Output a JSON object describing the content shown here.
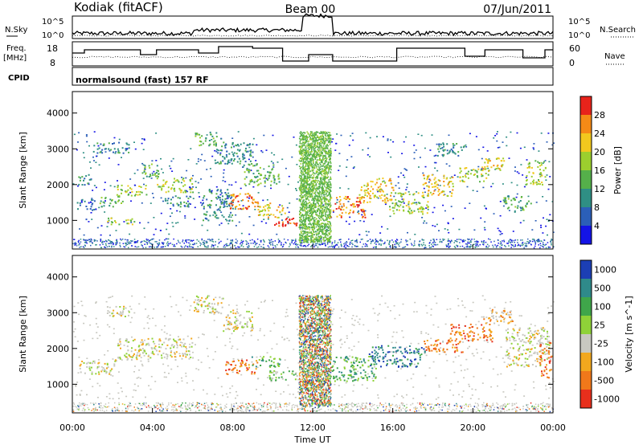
{
  "header": {
    "station": "Kodiak (fitACF)",
    "beam": "Beam 00",
    "date": "07/Jun/2011"
  },
  "strip_labels": {
    "nsky": "N.Sky",
    "nsearch": "N.Search",
    "freq": "Freq.",
    "freq_unit": "[MHz]",
    "nave": "Nave",
    "cpid": "CPID",
    "cpid_text": "normalsound (fast) 157 RF",
    "exp_top": "10^5",
    "exp_bottom": "10^0",
    "freq_ticks": [
      "18",
      "8"
    ],
    "nave_ticks": [
      "60",
      "0"
    ]
  },
  "chart_data": [
    {
      "type": "heatmap",
      "name": "power",
      "ylabel": "Slant Range [km]",
      "yticks": [
        1000,
        2000,
        3000,
        4000
      ],
      "ylim": [
        200,
        4600
      ],
      "xlim": [
        0,
        24
      ],
      "colorbar_label": "Power [dB]",
      "colorbar_ticks": [
        "4",
        "8",
        "12",
        "16",
        "20",
        "24",
        "28"
      ],
      "colorbar_colors": [
        "#1414e6",
        "#2b5fb8",
        "#2f8f84",
        "#55b04a",
        "#9ccf2e",
        "#f2c81e",
        "#f58a16",
        "#e8231b"
      ],
      "regions": [
        {
          "t0": 0.2,
          "t1": 0.9,
          "r0": 2000,
          "r1": 2300,
          "level": 2
        },
        {
          "t0": 0.2,
          "t1": 1.2,
          "r0": 1300,
          "r1": 1600,
          "level": 1
        },
        {
          "t0": 1.0,
          "t1": 2.8,
          "r0": 2900,
          "r1": 3200,
          "level": 2
        },
        {
          "t0": 1.3,
          "t1": 2.5,
          "r0": 1400,
          "r1": 1700,
          "level": 3
        },
        {
          "t0": 1.7,
          "t1": 3.1,
          "r0": 900,
          "r1": 1100,
          "level": 4
        },
        {
          "t0": 2.2,
          "t1": 3.8,
          "r0": 1700,
          "r1": 2000,
          "level": 4
        },
        {
          "t0": 3.4,
          "t1": 4.3,
          "r0": 2200,
          "r1": 2600,
          "level": 3
        },
        {
          "t0": 4.2,
          "t1": 6.0,
          "r0": 1800,
          "r1": 2200,
          "level": 4
        },
        {
          "t0": 4.5,
          "t1": 5.8,
          "r0": 1400,
          "r1": 1700,
          "level": 2
        },
        {
          "t0": 6.1,
          "t1": 7.2,
          "r0": 3100,
          "r1": 3500,
          "level": 3
        },
        {
          "t0": 6.5,
          "t1": 8.0,
          "r0": 1000,
          "r1": 1900,
          "level": 2
        },
        {
          "t0": 7.0,
          "t1": 9.0,
          "r0": 2600,
          "r1": 3200,
          "level": 2
        },
        {
          "t0": 7.8,
          "t1": 9.3,
          "r0": 1300,
          "r1": 1800,
          "level": 6
        },
        {
          "t0": 8.5,
          "t1": 10.3,
          "r0": 2000,
          "r1": 2600,
          "level": 3
        },
        {
          "t0": 9.2,
          "t1": 10.6,
          "r0": 1100,
          "r1": 1500,
          "level": 5
        },
        {
          "t0": 10.0,
          "t1": 11.2,
          "r0": 850,
          "r1": 1150,
          "level": 7
        },
        {
          "t0": 12.8,
          "t1": 14.6,
          "r0": 1100,
          "r1": 1700,
          "level": 6
        },
        {
          "t0": 14.3,
          "t1": 16.0,
          "r0": 1500,
          "r1": 2200,
          "level": 5
        },
        {
          "t0": 15.8,
          "t1": 17.8,
          "r0": 1200,
          "r1": 1800,
          "level": 4
        },
        {
          "t0": 17.4,
          "t1": 19.0,
          "r0": 1700,
          "r1": 2300,
          "level": 5
        },
        {
          "t0": 18.2,
          "t1": 19.6,
          "r0": 2800,
          "r1": 3200,
          "level": 2
        },
        {
          "t0": 19.3,
          "t1": 20.8,
          "r0": 2100,
          "r1": 2500,
          "level": 4
        },
        {
          "t0": 20.4,
          "t1": 21.6,
          "r0": 2400,
          "r1": 2800,
          "level": 5
        },
        {
          "t0": 21.5,
          "t1": 22.9,
          "r0": 1300,
          "r1": 1700,
          "level": 3
        },
        {
          "t0": 22.6,
          "t1": 23.6,
          "r0": 2000,
          "r1": 2700,
          "level": 4
        }
      ]
    },
    {
      "type": "heatmap",
      "name": "velocity",
      "ylabel": "Slant Range [km]",
      "yticks": [
        1000,
        2000,
        3000,
        4000
      ],
      "ylim": [
        200,
        4600
      ],
      "xlim": [
        0,
        24
      ],
      "xticks": [
        "00:00",
        "04:00",
        "08:00",
        "12:00",
        "16:00",
        "20:00",
        "00:00"
      ],
      "xlabel": "Time UT",
      "colorbar_label": "Velocity [m s^-1]",
      "colorbar_ticks": [
        "1000",
        "500",
        "100",
        "25",
        "-25",
        "-100",
        "-500",
        "-1000"
      ],
      "colorbar_colors": [
        "#1c3fb4",
        "#2f8a8a",
        "#3fa64a",
        "#8fd238",
        "#c8c8c0",
        "#f2a81e",
        "#f0781a",
        "#e82f1c"
      ],
      "regions": [
        {
          "t0": 0.3,
          "t1": 2.2,
          "r0": 1300,
          "r1": 1700,
          "level": 4
        },
        {
          "t0": 1.5,
          "t1": 2.8,
          "r0": 2900,
          "r1": 3200,
          "level": 4
        },
        {
          "t0": 2.2,
          "t1": 6.0,
          "r0": 1700,
          "r1": 2300,
          "level": 4
        },
        {
          "t0": 6.0,
          "t1": 7.5,
          "r0": 3000,
          "r1": 3500,
          "level": 4
        },
        {
          "t0": 7.5,
          "t1": 9.0,
          "r0": 2500,
          "r1": 3100,
          "level": 4
        },
        {
          "t0": 7.6,
          "t1": 9.3,
          "r0": 1300,
          "r1": 1700,
          "level": 6
        },
        {
          "t0": 8.9,
          "t1": 10.4,
          "r0": 1500,
          "r1": 1800,
          "level": 2
        },
        {
          "t0": 9.8,
          "t1": 11.2,
          "r0": 1100,
          "r1": 1400,
          "level": 3
        },
        {
          "t0": 12.8,
          "t1": 15.2,
          "r0": 1100,
          "r1": 1800,
          "level": 2
        },
        {
          "t0": 14.8,
          "t1": 17.6,
          "r0": 1500,
          "r1": 2100,
          "level": 1
        },
        {
          "t0": 17.5,
          "t1": 19.5,
          "r0": 1900,
          "r1": 2300,
          "level": 6
        },
        {
          "t0": 18.8,
          "t1": 21.0,
          "r0": 2200,
          "r1": 2700,
          "level": 6
        },
        {
          "t0": 20.5,
          "t1": 22.0,
          "r0": 2700,
          "r1": 3100,
          "level": 5
        },
        {
          "t0": 21.6,
          "t1": 23.8,
          "r0": 1500,
          "r1": 2600,
          "level": 4
        },
        {
          "t0": 23.3,
          "t1": 23.9,
          "r0": 1200,
          "r1": 2200,
          "level": 6
        }
      ]
    }
  ]
}
